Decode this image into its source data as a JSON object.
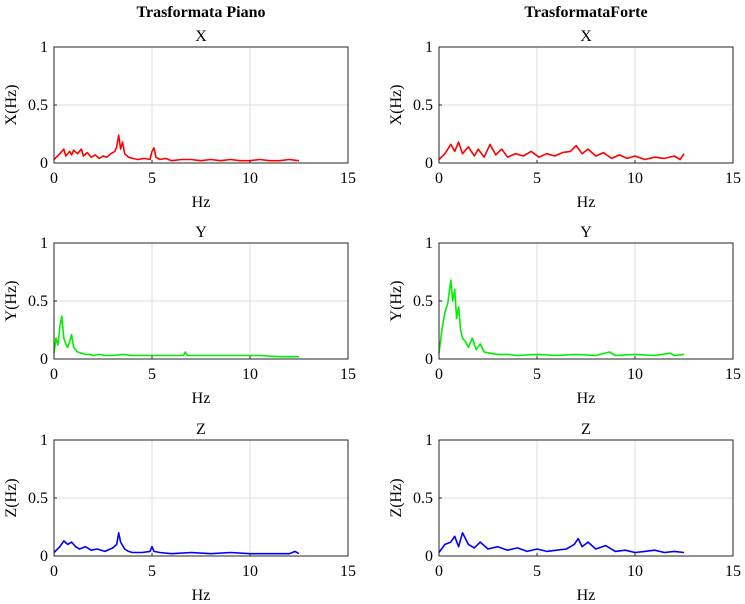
{
  "columns": [
    {
      "title": "Trasformata Piano"
    },
    {
      "title": "TrasformataForte"
    }
  ],
  "chart_data": [
    {
      "type": "line",
      "column": 0,
      "row": 0,
      "title": "X",
      "xlabel": "Hz",
      "ylabel": "X(Hz)",
      "xlim": [
        0,
        15
      ],
      "ylim": [
        0,
        1
      ],
      "xticks": [
        0,
        5,
        10,
        15
      ],
      "yticks": [
        0,
        0.5,
        1
      ],
      "grid": true,
      "color": "#ff0000",
      "series": [
        {
          "x": [
            0,
            0.3,
            0.5,
            0.6,
            0.8,
            0.9,
            1.0,
            1.2,
            1.4,
            1.5,
            1.7,
            1.9,
            2.1,
            2.3,
            2.5,
            2.7,
            2.9,
            3.1,
            3.2,
            3.3,
            3.4,
            3.5,
            3.6,
            3.8,
            4.0,
            4.3,
            4.6,
            4.9,
            5.0,
            5.1,
            5.2,
            5.4,
            5.7,
            6.0,
            6.5,
            7.0,
            7.5,
            8.0,
            8.5,
            9.0,
            9.5,
            10.0,
            10.5,
            11.0,
            11.5,
            12.0,
            12.5
          ],
          "y": [
            0.03,
            0.08,
            0.12,
            0.06,
            0.1,
            0.07,
            0.11,
            0.08,
            0.12,
            0.06,
            0.09,
            0.05,
            0.07,
            0.04,
            0.06,
            0.05,
            0.08,
            0.1,
            0.14,
            0.24,
            0.12,
            0.18,
            0.08,
            0.05,
            0.04,
            0.03,
            0.04,
            0.03,
            0.1,
            0.13,
            0.05,
            0.03,
            0.04,
            0.02,
            0.03,
            0.03,
            0.02,
            0.03,
            0.02,
            0.03,
            0.02,
            0.02,
            0.03,
            0.02,
            0.02,
            0.03,
            0.02
          ]
        }
      ]
    },
    {
      "type": "line",
      "column": 1,
      "row": 0,
      "title": "X",
      "xlabel": "Hz",
      "ylabel": "X(Hz)",
      "xlim": [
        0,
        15
      ],
      "ylim": [
        0,
        1
      ],
      "xticks": [
        0,
        5,
        10,
        15
      ],
      "yticks": [
        0,
        0.5,
        1
      ],
      "grid": true,
      "color": "#ff0000",
      "series": [
        {
          "x": [
            0,
            0.3,
            0.6,
            0.8,
            1.0,
            1.2,
            1.5,
            1.8,
            2.0,
            2.3,
            2.6,
            2.9,
            3.2,
            3.5,
            3.9,
            4.3,
            4.7,
            5.1,
            5.5,
            5.9,
            6.3,
            6.7,
            7.0,
            7.3,
            7.6,
            8.0,
            8.4,
            8.8,
            9.2,
            9.6,
            10.0,
            10.5,
            11.0,
            11.5,
            12.0,
            12.3,
            12.5
          ],
          "y": [
            0.03,
            0.08,
            0.16,
            0.1,
            0.18,
            0.08,
            0.14,
            0.06,
            0.12,
            0.05,
            0.16,
            0.07,
            0.12,
            0.05,
            0.08,
            0.06,
            0.1,
            0.05,
            0.08,
            0.06,
            0.09,
            0.1,
            0.15,
            0.08,
            0.12,
            0.06,
            0.09,
            0.04,
            0.07,
            0.04,
            0.06,
            0.03,
            0.05,
            0.04,
            0.06,
            0.03,
            0.08
          ]
        }
      ]
    },
    {
      "type": "line",
      "column": 0,
      "row": 1,
      "title": "Y",
      "xlabel": "Hz",
      "ylabel": "Y(Hz)",
      "xlim": [
        0,
        15
      ],
      "ylim": [
        0,
        1
      ],
      "xticks": [
        0,
        5,
        10,
        15
      ],
      "yticks": [
        0,
        0.5,
        1
      ],
      "grid": true,
      "color": "#00ee00",
      "series": [
        {
          "x": [
            0,
            0.1,
            0.2,
            0.3,
            0.4,
            0.5,
            0.6,
            0.7,
            0.8,
            0.9,
            1.0,
            1.1,
            1.2,
            1.4,
            1.6,
            1.8,
            2.0,
            2.3,
            2.6,
            3.0,
            3.5,
            4.0,
            5.0,
            6.0,
            6.6,
            6.7,
            6.8,
            7.5,
            8.5,
            9.5,
            10.5,
            11.5,
            12.5
          ],
          "y": [
            0.05,
            0.18,
            0.12,
            0.28,
            0.37,
            0.18,
            0.13,
            0.1,
            0.15,
            0.21,
            0.1,
            0.08,
            0.06,
            0.05,
            0.04,
            0.04,
            0.03,
            0.04,
            0.03,
            0.03,
            0.04,
            0.03,
            0.03,
            0.03,
            0.03,
            0.06,
            0.03,
            0.03,
            0.03,
            0.03,
            0.03,
            0.02,
            0.02
          ]
        }
      ]
    },
    {
      "type": "line",
      "column": 1,
      "row": 1,
      "title": "Y",
      "xlabel": "Hz",
      "ylabel": "Y(Hz)",
      "xlim": [
        0,
        15
      ],
      "ylim": [
        0,
        1
      ],
      "xticks": [
        0,
        5,
        10,
        15
      ],
      "yticks": [
        0,
        0.5,
        1
      ],
      "grid": true,
      "color": "#00ee00",
      "series": [
        {
          "x": [
            0,
            0.15,
            0.3,
            0.45,
            0.6,
            0.7,
            0.8,
            0.9,
            1.0,
            1.1,
            1.2,
            1.35,
            1.5,
            1.7,
            1.9,
            2.1,
            2.3,
            2.6,
            3.0,
            3.5,
            4.0,
            5.0,
            6.0,
            7.0,
            8.0,
            8.7,
            9.0,
            10.0,
            11.0,
            11.8,
            12.0,
            12.5
          ],
          "y": [
            0.05,
            0.25,
            0.4,
            0.48,
            0.68,
            0.5,
            0.6,
            0.35,
            0.45,
            0.25,
            0.18,
            0.15,
            0.1,
            0.18,
            0.08,
            0.13,
            0.06,
            0.05,
            0.04,
            0.04,
            0.03,
            0.04,
            0.03,
            0.04,
            0.03,
            0.06,
            0.03,
            0.04,
            0.03,
            0.05,
            0.03,
            0.04
          ]
        }
      ]
    },
    {
      "type": "line",
      "column": 0,
      "row": 2,
      "title": "Z",
      "xlabel": "Hz",
      "ylabel": "Z(Hz)",
      "xlim": [
        0,
        15
      ],
      "ylim": [
        0,
        1
      ],
      "xticks": [
        0,
        5,
        10,
        15
      ],
      "yticks": [
        0,
        0.5,
        1
      ],
      "grid": true,
      "color": "#0000ff",
      "series": [
        {
          "x": [
            0,
            0.3,
            0.5,
            0.7,
            0.9,
            1.1,
            1.3,
            1.6,
            1.9,
            2.2,
            2.6,
            3.0,
            3.2,
            3.3,
            3.4,
            3.6,
            3.8,
            4.0,
            4.5,
            4.9,
            5.0,
            5.1,
            5.4,
            6.0,
            7.0,
            8.0,
            9.0,
            10.0,
            11.0,
            12.0,
            12.3,
            12.5
          ],
          "y": [
            0.03,
            0.08,
            0.13,
            0.1,
            0.12,
            0.08,
            0.06,
            0.08,
            0.05,
            0.06,
            0.04,
            0.07,
            0.1,
            0.2,
            0.12,
            0.06,
            0.04,
            0.03,
            0.03,
            0.04,
            0.08,
            0.04,
            0.03,
            0.02,
            0.03,
            0.02,
            0.03,
            0.02,
            0.02,
            0.02,
            0.04,
            0.02
          ]
        }
      ]
    },
    {
      "type": "line",
      "column": 1,
      "row": 2,
      "title": "Z",
      "xlabel": "Hz",
      "ylabel": "Z(Hz)",
      "xlim": [
        0,
        15
      ],
      "ylim": [
        0,
        1
      ],
      "xticks": [
        0,
        5,
        10,
        15
      ],
      "yticks": [
        0,
        0.5,
        1
      ],
      "grid": true,
      "color": "#0000ff",
      "series": [
        {
          "x": [
            0,
            0.3,
            0.6,
            0.8,
            1.0,
            1.2,
            1.5,
            1.8,
            2.1,
            2.5,
            3.0,
            3.5,
            4.0,
            4.5,
            5.0,
            5.5,
            6.0,
            6.5,
            6.9,
            7.1,
            7.3,
            7.6,
            8.0,
            8.5,
            9.0,
            9.5,
            10.0,
            10.5,
            11.0,
            11.5,
            12.0,
            12.5
          ],
          "y": [
            0.03,
            0.1,
            0.12,
            0.17,
            0.08,
            0.2,
            0.1,
            0.07,
            0.12,
            0.06,
            0.08,
            0.05,
            0.07,
            0.04,
            0.06,
            0.04,
            0.05,
            0.06,
            0.1,
            0.15,
            0.08,
            0.12,
            0.06,
            0.09,
            0.04,
            0.05,
            0.03,
            0.04,
            0.05,
            0.03,
            0.04,
            0.03
          ]
        }
      ]
    }
  ]
}
